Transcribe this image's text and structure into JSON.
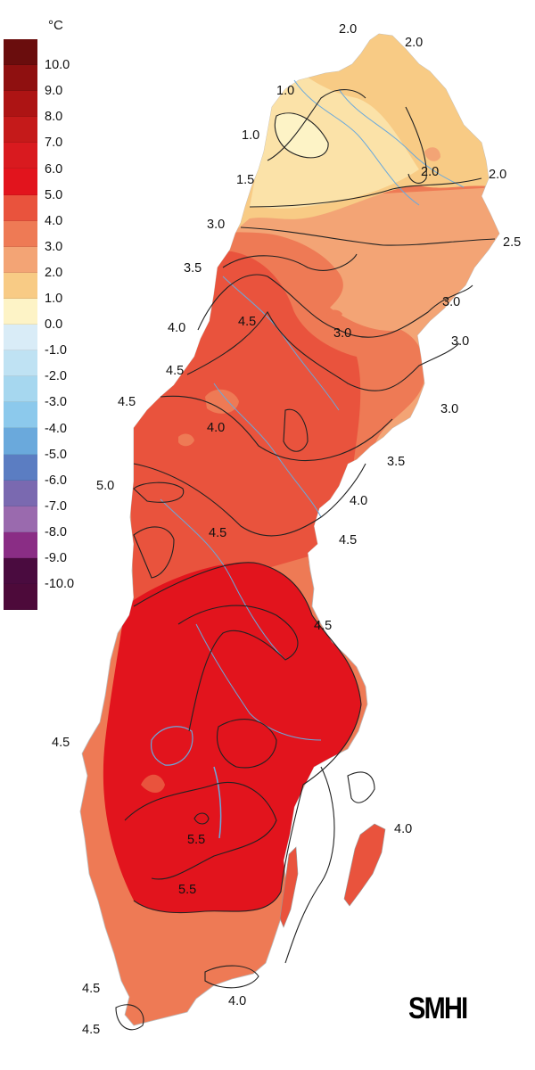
{
  "legend": {
    "unit": "°C",
    "items": [
      {
        "label": "10.0",
        "color": "#6a0d0d"
      },
      {
        "label": "9.0",
        "color": "#8f1010"
      },
      {
        "label": "8.0",
        "color": "#ad1414"
      },
      {
        "label": "7.0",
        "color": "#c51a1a"
      },
      {
        "label": "6.0",
        "color": "#d91a1f"
      },
      {
        "label": "5.0",
        "color": "#e2141d"
      },
      {
        "label": "4.0",
        "color": "#e9533d"
      },
      {
        "label": "3.0",
        "color": "#ee7a55"
      },
      {
        "label": "2.0",
        "color": "#f3a475"
      },
      {
        "label": "1.0",
        "color": "#f8cb85"
      },
      {
        "label": "0.0",
        "color": "#fdf3c6"
      },
      {
        "label": "-1.0",
        "color": "#d9ecf7"
      },
      {
        "label": "-2.0",
        "color": "#bfe2f3"
      },
      {
        "label": "-3.0",
        "color": "#a6d7ef"
      },
      {
        "label": "-4.0",
        "color": "#8cc9ec"
      },
      {
        "label": "-5.0",
        "color": "#6aa9dc"
      },
      {
        "label": "-6.0",
        "color": "#5b7dc2"
      },
      {
        "label": "-7.0",
        "color": "#7a69b0"
      },
      {
        "label": "-8.0",
        "color": "#9a6aae"
      },
      {
        "label": "-9.0",
        "color": "#8a2d85"
      },
      {
        "label": "-10.0",
        "color": "#4a0b3f"
      },
      {
        "label": "",
        "color": "#4d0a3a"
      }
    ]
  },
  "isoline_labels": [
    "2.0",
    "2.0",
    "1.0",
    "1.0",
    "2.0",
    "2.0",
    "1.5",
    "3.0",
    "2.5",
    "3.5",
    "3.0",
    "4.0",
    "4.5",
    "3.0",
    "3.0",
    "4.5",
    "4.0",
    "3.0",
    "4.5",
    "3.5",
    "5.0",
    "4.0",
    "4.5",
    "4.5",
    "4.5",
    "4.5",
    "4.0",
    "5.5",
    "5.5",
    "4.5",
    "4.0",
    "4.5"
  ],
  "zone_colors": {
    "z1": "#fdf3c6",
    "z1_5": "#fbe2a8",
    "z2": "#f8cb85",
    "z2_5": "#f3a475",
    "z3": "#ee7a55",
    "z4": "#e9533d",
    "z5": "#e2141d",
    "water": "#6aa9dc",
    "isoline": "#222222",
    "coast": "#cccccc"
  },
  "logo": "SMHI"
}
